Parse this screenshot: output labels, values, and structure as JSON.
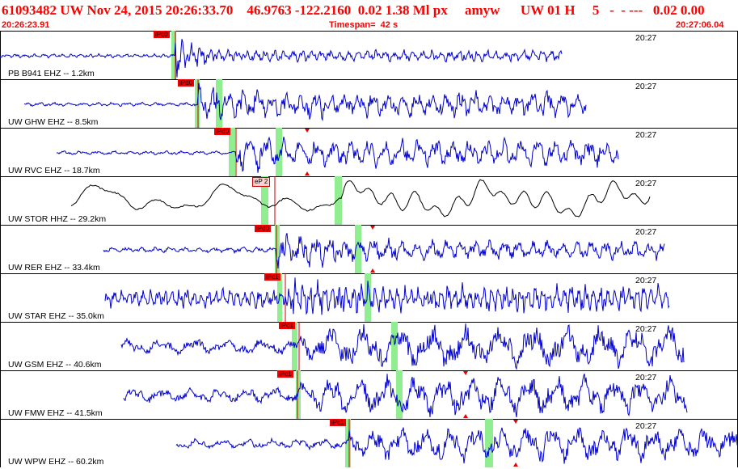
{
  "header": {
    "event_line": "61093482 UW Nov 24, 2015 20:26:33.70    46.9763 -122.2160  0.02 1.38 Ml px     amyw      UW 01 H     5   -  - ---   0.02 0.00",
    "start_time": "20:26:23.91",
    "timespan": "Timespan=  42 s",
    "end_time": "20:27:06.04"
  },
  "colors": {
    "header_text": "#ff0000",
    "trace_default": "#0000cc",
    "trace_alt": "#000000",
    "pick_flag": "#ee0000",
    "window_band": "#90ee90"
  },
  "traces": [
    {
      "label": "PB B941 EHZ -- 1.2km",
      "time": "20:27",
      "pick": "iPc0",
      "color": "#0000cc"
    },
    {
      "label": "UW GHW EHZ -- 8.5km",
      "time": "20:27",
      "pick": "iPd0",
      "color": "#0000cc"
    },
    {
      "label": "UW RVC EHZ -- 18.7km",
      "time": "20:27",
      "pick": "iPd0",
      "color": "#0000cc"
    },
    {
      "label": "UW STOR HHZ -- 29.2km",
      "time": "20:27",
      "pick": "eP 2",
      "color": "#000000"
    },
    {
      "label": "UW RER EHZ -- 33.4km",
      "time": "20:27",
      "pick": "iPd0",
      "color": "#0000cc"
    },
    {
      "label": "UW STAR EHZ -- 35.0km",
      "time": "20:27",
      "pick": "iPc1",
      "color": "#0000cc"
    },
    {
      "label": "UW GSM EHZ -- 40.6km",
      "time": "20:27",
      "pick": "iPd1",
      "color": "#0000cc"
    },
    {
      "label": "UW FMW EHZ -- 41.5km",
      "time": "20:27",
      "pick": "iPc1",
      "color": "#0000cc"
    },
    {
      "label": "UW WPW EHZ -- 60.2km",
      "time": "20:27",
      "pick": "iPc1",
      "color": "#0000cc"
    }
  ]
}
